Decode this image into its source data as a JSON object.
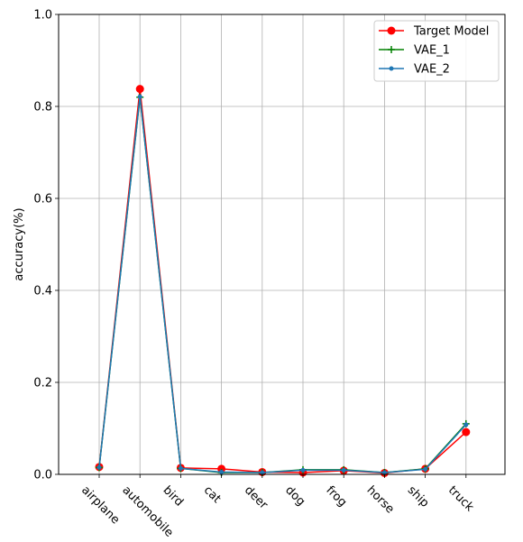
{
  "chart_data": {
    "type": "line",
    "title": "",
    "xlabel": "",
    "ylabel": "accuracy(%)",
    "ylim": [
      0,
      1.0
    ],
    "yticks": [
      "0.0",
      "0.2",
      "0.4",
      "0.6",
      "0.8",
      "1.0"
    ],
    "categories": [
      "airplane",
      "automobile",
      "bird",
      "cat",
      "deer",
      "dog",
      "frog",
      "horse",
      "ship",
      "truck"
    ],
    "grid": true,
    "legend_position": "top-right",
    "series": [
      {
        "name": "Target Model",
        "color": "#ff0000",
        "marker": "circle",
        "values": [
          0.016,
          0.838,
          0.014,
          0.012,
          0.005,
          0.004,
          0.008,
          0.003,
          0.012,
          0.092
        ]
      },
      {
        "name": "VAE_1",
        "color": "#008000",
        "marker": "plus",
        "values": [
          0.015,
          0.82,
          0.013,
          0.004,
          0.004,
          0.01,
          0.01,
          0.004,
          0.012,
          0.11
        ]
      },
      {
        "name": "VAE_2",
        "color": "#1f77b4",
        "marker": "dot",
        "values": [
          0.015,
          0.821,
          0.013,
          0.005,
          0.004,
          0.009,
          0.009,
          0.004,
          0.011,
          0.108
        ]
      }
    ]
  }
}
